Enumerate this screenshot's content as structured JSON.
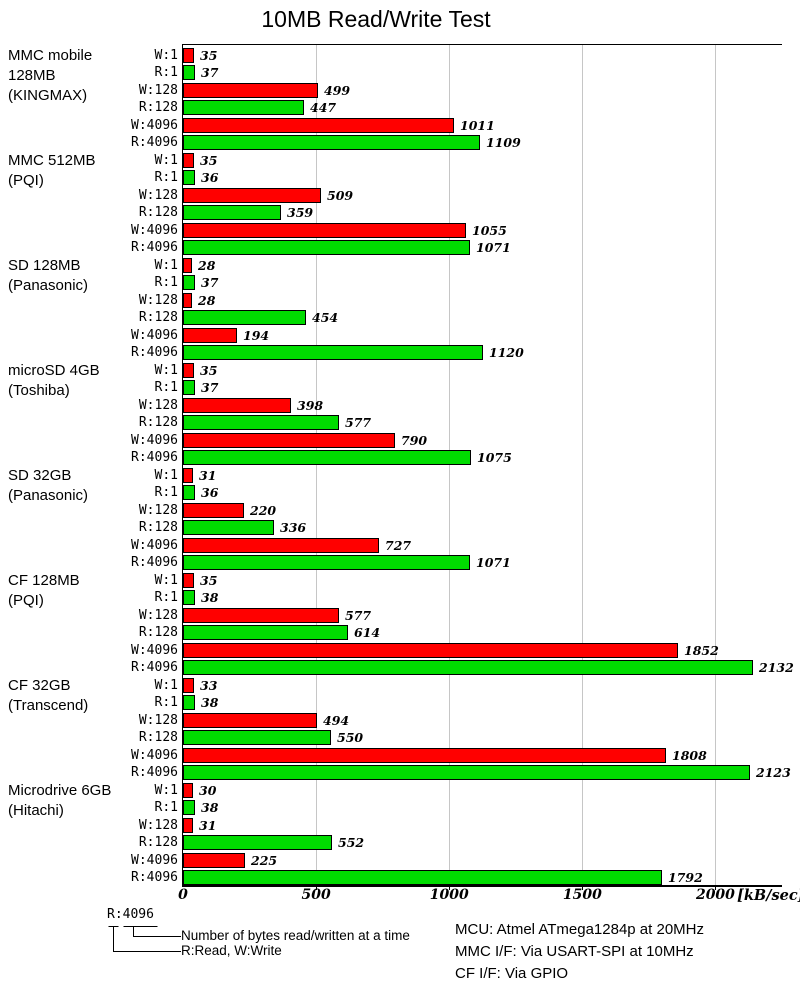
{
  "title": "10MB Read/Write Test",
  "chart_data": {
    "type": "bar",
    "orientation": "horizontal",
    "title": "10MB Read/Write Test",
    "xlabel": "[kB/sec]",
    "x_ticks": [
      0,
      500,
      1000,
      1500,
      2000
    ],
    "xlim": [
      0,
      2250
    ],
    "grid": "vertical-gray",
    "legend_position": "bottom-left",
    "bar_colors": {
      "write": "#ff0000",
      "read": "#00dd00"
    },
    "row_labels": [
      "W:1",
      "R:1",
      "W:128",
      "R:128",
      "W:4096",
      "R:4096"
    ],
    "groups": [
      {
        "name": "MMC mobile 128MB (KINGMAX)",
        "label_lines": [
          "MMC mobile",
          "128MB",
          "(KINGMAX)"
        ],
        "values": [
          35,
          37,
          499,
          447,
          1011,
          1109
        ]
      },
      {
        "name": "MMC 512MB (PQI)",
        "label_lines": [
          "MMC 512MB",
          "(PQI)"
        ],
        "values": [
          35,
          36,
          509,
          359,
          1055,
          1071
        ]
      },
      {
        "name": "SD 128MB (Panasonic)",
        "label_lines": [
          "SD 128MB",
          "(Panasonic)"
        ],
        "values": [
          28,
          37,
          28,
          454,
          194,
          1120
        ]
      },
      {
        "name": "microSD 4GB (Toshiba)",
        "label_lines": [
          "microSD 4GB",
          "(Toshiba)"
        ],
        "values": [
          35,
          37,
          398,
          577,
          790,
          1075
        ]
      },
      {
        "name": "SD 32GB (Panasonic)",
        "label_lines": [
          "SD 32GB",
          "(Panasonic)"
        ],
        "values": [
          31,
          36,
          220,
          336,
          727,
          1071
        ]
      },
      {
        "name": "CF 128MB (PQI)",
        "label_lines": [
          "CF 128MB",
          "(PQI)"
        ],
        "values": [
          35,
          38,
          577,
          614,
          1852,
          2132
        ]
      },
      {
        "name": "CF 32GB (Transcend)",
        "label_lines": [
          "CF 32GB",
          "(Transcend)"
        ],
        "values": [
          33,
          38,
          494,
          550,
          1808,
          2123
        ]
      },
      {
        "name": "Microdrive 6GB (Hitachi)",
        "label_lines": [
          "Microdrive 6GB",
          "(Hitachi)"
        ],
        "values": [
          30,
          38,
          31,
          552,
          225,
          1792
        ]
      }
    ]
  },
  "legend": {
    "sample": "R:4096",
    "bytes_note": "Number of bytes read/written at a time",
    "rw_note": "R:Read, W:Write"
  },
  "info_lines": [
    "MCU: Atmel ATmega1284p at 20MHz",
    "MMC I/F: Via USART-SPI at 10MHz",
    "CF I/F: Via GPIO"
  ]
}
